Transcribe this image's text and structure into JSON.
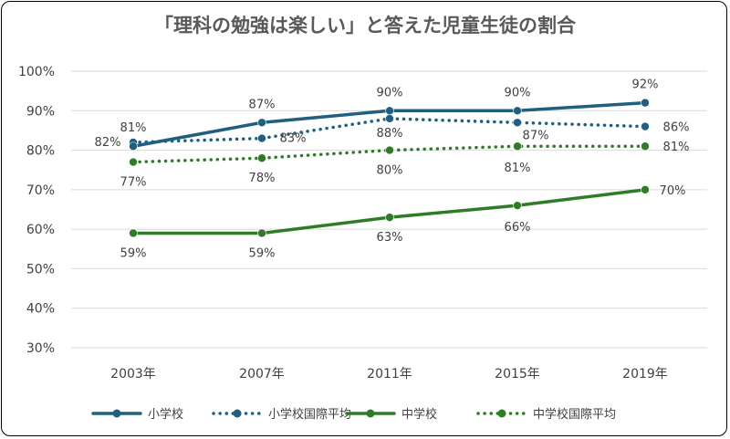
{
  "chart_data": {
    "type": "line",
    "title": "「理科の勉強は楽しい」と答えた児童生徒の割合",
    "categories": [
      "2003年",
      "2007年",
      "2011年",
      "2015年",
      "2019年"
    ],
    "ylim": [
      30,
      100
    ],
    "yticks": [
      "30%",
      "40%",
      "50%",
      "60%",
      "70%",
      "80%",
      "90%",
      "100%"
    ],
    "grid": true,
    "legend": "bottom",
    "series": [
      {
        "name": "小学校",
        "values": [
          81,
          87,
          90,
          90,
          92
        ],
        "color": "#1f5f7f",
        "style": "solid",
        "labels": [
          "81%",
          "87%",
          "90%",
          "90%",
          "92%"
        ]
      },
      {
        "name": "小学校国際平均",
        "values": [
          82,
          83,
          88,
          87,
          86
        ],
        "color": "#1f5f7f",
        "style": "dotted",
        "labels": [
          "82%",
          "83%",
          "88%",
          "87%",
          "86%"
        ]
      },
      {
        "name": "中学校",
        "values": [
          59,
          59,
          63,
          66,
          70
        ],
        "color": "#2e7d26",
        "style": "solid",
        "labels": [
          "59%",
          "59%",
          "63%",
          "66%",
          "70%"
        ]
      },
      {
        "name": "中学校国際平均",
        "values": [
          77,
          78,
          80,
          81,
          81
        ],
        "color": "#2e7d26",
        "style": "dotted",
        "labels": [
          "77%",
          "78%",
          "80%",
          "81%",
          "81%"
        ]
      }
    ]
  }
}
